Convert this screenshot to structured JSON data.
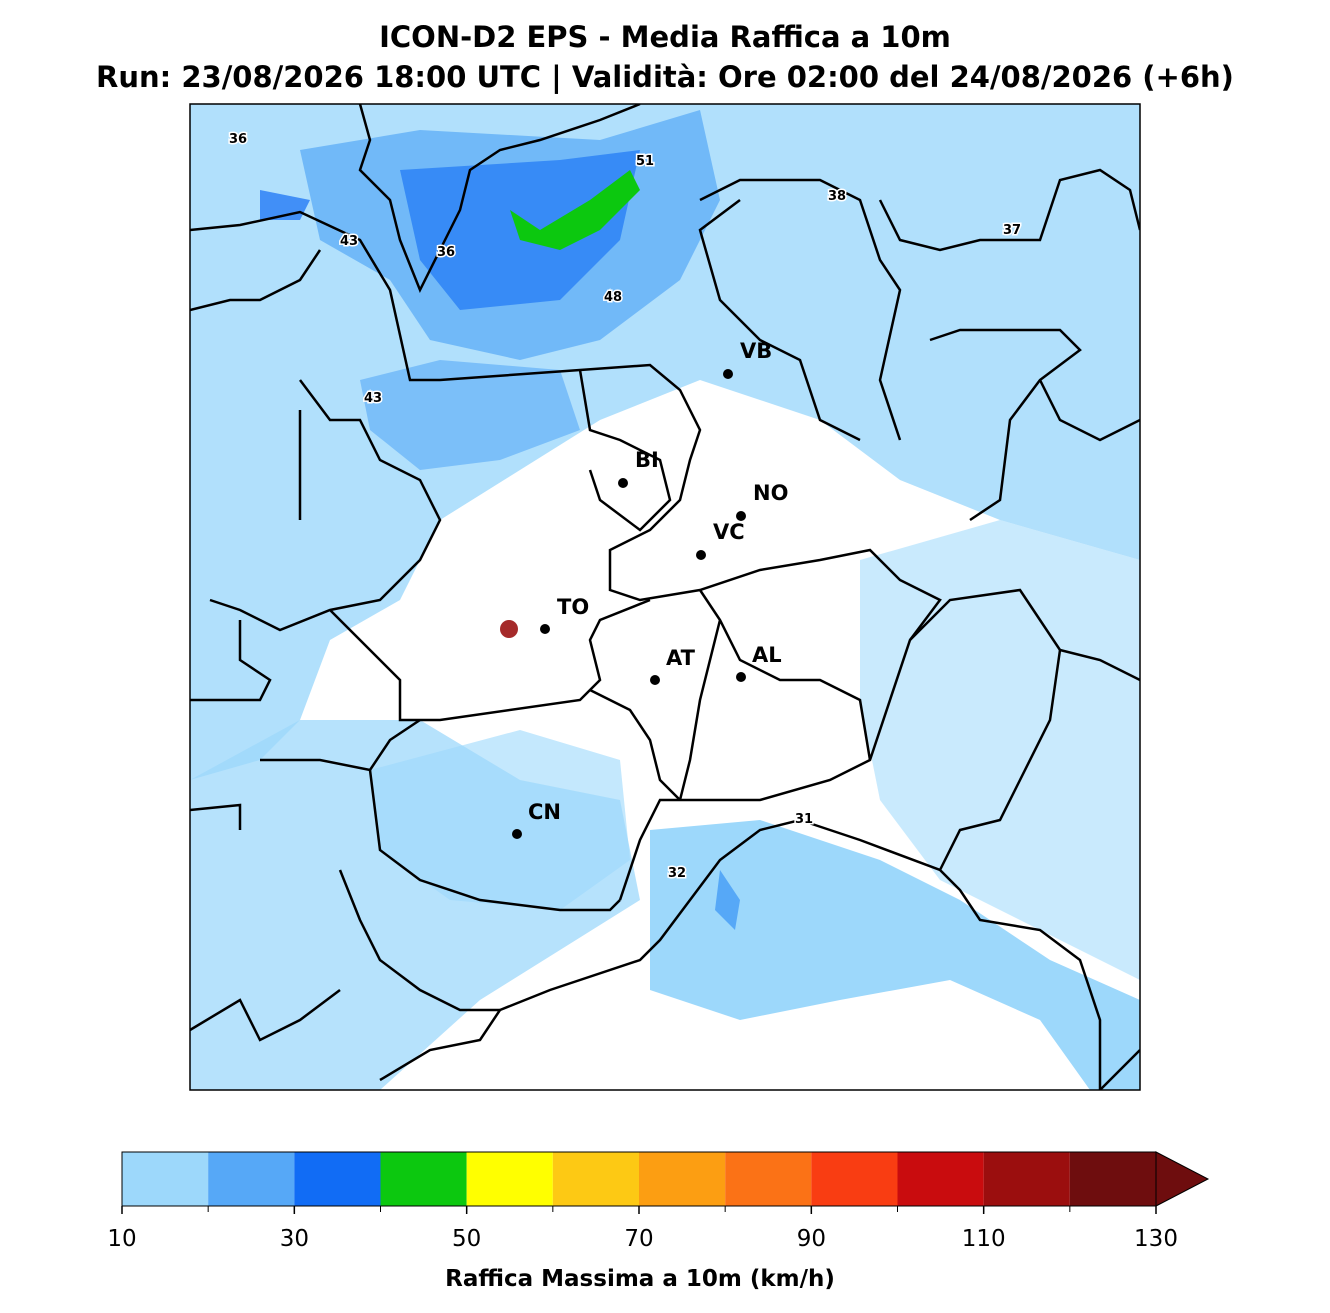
{
  "header": {
    "title": "ICON-D2 EPS - Media Raffica a 10m",
    "subtitle": "Run: 23/08/2026 18:00 UTC | Validità: Ore 02:00 del 24/08/2026 (+6h)"
  },
  "map": {
    "cities": [
      "VB",
      "BI",
      "NO",
      "VC",
      "TO",
      "AT",
      "AL",
      "CN"
    ],
    "value_labels": [
      36,
      51,
      38,
      43,
      36,
      37,
      48,
      43,
      31,
      32
    ]
  },
  "colorbar": {
    "label": "Raffica Massima a 10m (km/h)",
    "levels": [
      10,
      20,
      30,
      40,
      50,
      60,
      70,
      80,
      90,
      100,
      110,
      120,
      130
    ],
    "colors": [
      "#9dd8fb",
      "#56a8f7",
      "#116cf5",
      "#0cc80f",
      "#ffff00",
      "#fdc914",
      "#fc9e12",
      "#fb7216",
      "#f93d12",
      "#c90c0e",
      "#9b0e0e",
      "#6e0d0e"
    ],
    "extend_color": "#6e0d0e",
    "ticks": [
      10,
      30,
      50,
      70,
      90,
      110,
      130
    ]
  }
}
